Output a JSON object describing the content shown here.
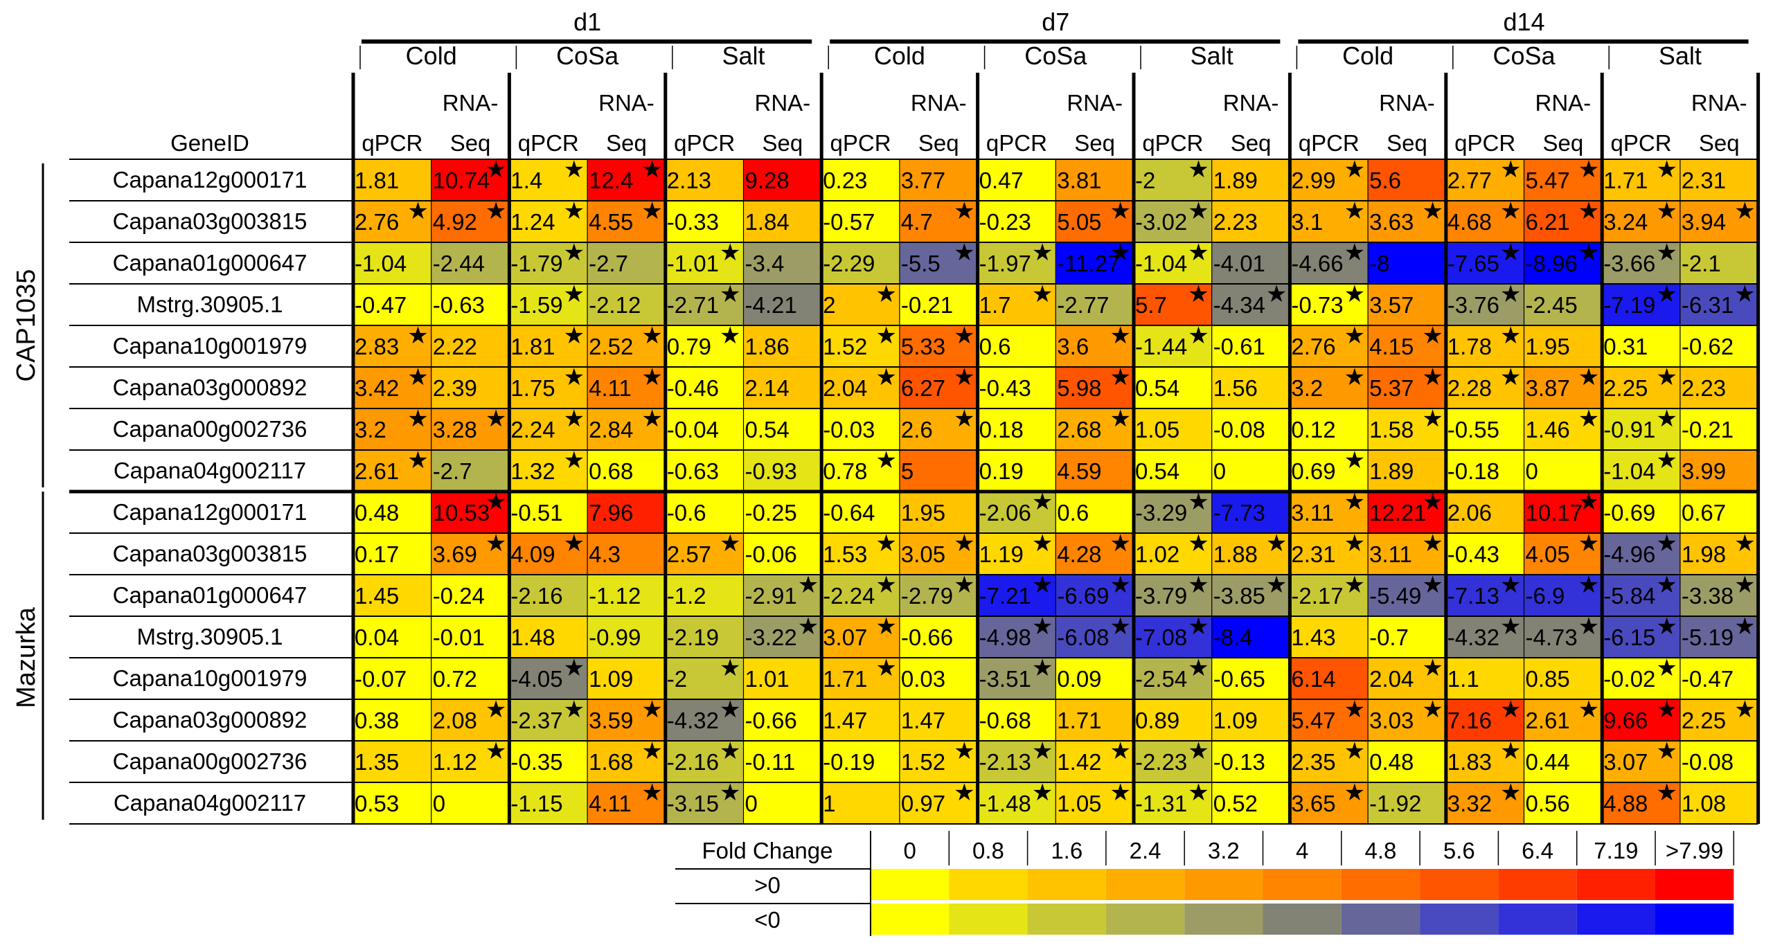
{
  "chart_data": {
    "type": "heatmap",
    "title": "",
    "gene_header": "GeneID",
    "timepoints": [
      "d1",
      "d7",
      "d14"
    ],
    "conditions": [
      "Cold",
      "CoSa",
      "Salt"
    ],
    "methods": [
      "qPCR",
      "RNA-\nSeq"
    ],
    "cultivars": [
      {
        "name": "CAP1035",
        "genes": [
          {
            "id": "Capana12g000171",
            "values": [
              "1.81",
              "10.74",
              "1.4",
              "12.4",
              "2.13",
              "9.28",
              "0.23",
              "3.77",
              "0.47",
              "3.81",
              "-2",
              "1.89",
              "2.99",
              "5.6",
              "2.77",
              "5.47",
              "1.71",
              "2.31"
            ],
            "stars": [
              0,
              1,
              1,
              1,
              0,
              0,
              0,
              0,
              0,
              0,
              1,
              0,
              1,
              0,
              1,
              1,
              1,
              0
            ]
          },
          {
            "id": "Capana03g003815",
            "values": [
              "2.76",
              "4.92",
              "1.24",
              "4.55",
              "-0.33",
              "1.84",
              "-0.57",
              "4.7",
              "-0.23",
              "5.05",
              "-3.02",
              "2.23",
              "3.1",
              "3.63",
              "4.68",
              "6.21",
              "3.24",
              "3.94"
            ],
            "stars": [
              1,
              1,
              1,
              1,
              0,
              0,
              0,
              1,
              0,
              1,
              1,
              0,
              1,
              1,
              1,
              1,
              1,
              1
            ]
          },
          {
            "id": "Capana01g000647",
            "values": [
              "-1.04",
              "-2.44",
              "-1.79",
              "-2.7",
              "-1.01",
              "-3.4",
              "-2.29",
              "-5.5",
              "-1.97",
              "-11.27",
              "-1.04",
              "-4.01",
              "-4.66",
              "-8",
              "-7.65",
              "-8.96",
              "-3.66",
              "-2.1"
            ],
            "stars": [
              0,
              0,
              1,
              0,
              1,
              0,
              0,
              1,
              1,
              1,
              1,
              0,
              1,
              0,
              1,
              1,
              1,
              0
            ]
          },
          {
            "id": "Mstrg.30905.1",
            "values": [
              "-0.47",
              "-0.63",
              "-1.59",
              "-2.12",
              "-2.71",
              "-4.21",
              "2",
              "-0.21",
              "1.7",
              "-2.77",
              "5.7",
              "-4.34",
              "-0.73",
              "3.57",
              "-3.76",
              "-2.45",
              "-7.19",
              "-6.31"
            ],
            "stars": [
              0,
              0,
              1,
              0,
              1,
              0,
              1,
              0,
              1,
              0,
              1,
              1,
              1,
              0,
              1,
              0,
              1,
              1
            ]
          },
          {
            "id": "Capana10g001979",
            "values": [
              "2.83",
              "2.22",
              "1.81",
              "2.52",
              "0.79",
              "1.86",
              "1.52",
              "5.33",
              "0.6",
              "3.6",
              "-1.44",
              "-0.61",
              "2.76",
              "4.15",
              "1.78",
              "1.95",
              "0.31",
              "-0.62"
            ],
            "stars": [
              1,
              0,
              1,
              1,
              1,
              0,
              1,
              1,
              0,
              1,
              1,
              0,
              1,
              1,
              1,
              0,
              0,
              0
            ]
          },
          {
            "id": "Capana03g000892",
            "values": [
              "3.42",
              "2.39",
              "1.75",
              "4.11",
              "-0.46",
              "2.14",
              "2.04",
              "6.27",
              "-0.43",
              "5.98",
              "0.54",
              "1.56",
              "3.2",
              "5.37",
              "2.28",
              "3.87",
              "2.25",
              "2.23"
            ],
            "stars": [
              1,
              0,
              1,
              1,
              0,
              0,
              1,
              1,
              0,
              1,
              0,
              0,
              1,
              1,
              1,
              1,
              1,
              0
            ]
          },
          {
            "id": "Capana00g002736",
            "values": [
              "3.2",
              "3.28",
              "2.24",
              "2.84",
              "-0.04",
              "0.54",
              "-0.03",
              "2.6",
              "0.18",
              "2.68",
              "1.05",
              "-0.08",
              "0.12",
              "1.58",
              "-0.55",
              "1.46",
              "-0.91",
              "-0.21"
            ],
            "stars": [
              1,
              1,
              1,
              1,
              0,
              0,
              0,
              1,
              0,
              1,
              0,
              0,
              0,
              1,
              0,
              1,
              1,
              0
            ]
          },
          {
            "id": "Capana04g002117",
            "values": [
              "2.61",
              "-2.7",
              "1.32",
              "0.68",
              "-0.63",
              "-0.93",
              "0.78",
              "5",
              "0.19",
              "4.59",
              "0.54",
              "0",
              "0.69",
              "1.89",
              "-0.18",
              "0",
              "-1.04",
              "3.99"
            ],
            "stars": [
              1,
              0,
              1,
              0,
              0,
              0,
              1,
              0,
              0,
              0,
              0,
              0,
              1,
              0,
              0,
              0,
              1,
              0
            ]
          }
        ]
      },
      {
        "name": "Mazurka",
        "genes": [
          {
            "id": "Capana12g000171",
            "values": [
              "0.48",
              "10.53",
              "-0.51",
              "7.96",
              "-0.6",
              "-0.25",
              "-0.64",
              "1.95",
              "-2.06",
              "0.6",
              "-3.29",
              "-7.73",
              "3.11",
              "12.21",
              "2.06",
              "10.17",
              "-0.69",
              "0.67"
            ],
            "stars": [
              0,
              1,
              0,
              0,
              0,
              0,
              0,
              0,
              1,
              0,
              1,
              0,
              1,
              1,
              0,
              1,
              0,
              0
            ]
          },
          {
            "id": "Capana03g003815",
            "values": [
              "0.17",
              "3.69",
              "4.09",
              "4.3",
              "2.57",
              "-0.06",
              "1.53",
              "3.05",
              "1.19",
              "4.28",
              "1.02",
              "1.88",
              "2.31",
              "3.11",
              "-0.43",
              "4.05",
              "-4.96",
              "1.98"
            ],
            "stars": [
              0,
              1,
              1,
              0,
              1,
              0,
              1,
              1,
              1,
              1,
              1,
              1,
              1,
              1,
              0,
              1,
              1,
              1
            ]
          },
          {
            "id": "Capana01g000647",
            "values": [
              "1.45",
              "-0.24",
              "-2.16",
              "-1.12",
              "-1.2",
              "-2.91",
              "-2.24",
              "-2.79",
              "-7.21",
              "-6.69",
              "-3.79",
              "-3.85",
              "-2.17",
              "-5.49",
              "-7.13",
              "-6.9",
              "-5.84",
              "-3.38"
            ],
            "stars": [
              0,
              0,
              0,
              0,
              0,
              1,
              1,
              1,
              1,
              1,
              1,
              1,
              1,
              1,
              1,
              1,
              1,
              1
            ]
          },
          {
            "id": "Mstrg.30905.1",
            "values": [
              "0.04",
              "-0.01",
              "1.48",
              "-0.99",
              "-2.19",
              "-3.22",
              "3.07",
              "-0.66",
              "-4.98",
              "-6.08",
              "-7.08",
              "-8.4",
              "1.43",
              "-0.7",
              "-4.32",
              "-4.73",
              "-6.15",
              "-5.19"
            ],
            "stars": [
              0,
              0,
              0,
              0,
              0,
              1,
              1,
              0,
              1,
              1,
              1,
              0,
              0,
              0,
              1,
              1,
              1,
              1
            ]
          },
          {
            "id": "Capana10g001979",
            "values": [
              "-0.07",
              "0.72",
              "-4.05",
              "1.09",
              "-2",
              "1.01",
              "1.71",
              "0.03",
              "-3.51",
              "0.09",
              "-2.54",
              "-0.65",
              "6.14",
              "2.04",
              "1.1",
              "0.85",
              "-0.02",
              "-0.47"
            ],
            "stars": [
              0,
              0,
              1,
              0,
              1,
              0,
              1,
              0,
              1,
              0,
              1,
              0,
              0,
              1,
              0,
              0,
              1,
              0
            ]
          },
          {
            "id": "Capana03g000892",
            "values": [
              "0.38",
              "2.08",
              "-2.37",
              "3.59",
              "-4.32",
              "-0.66",
              "1.47",
              "1.47",
              "-0.68",
              "1.71",
              "0.89",
              "1.09",
              "5.47",
              "3.03",
              "7.16",
              "2.61",
              "9.66",
              "2.25"
            ],
            "stars": [
              0,
              1,
              1,
              1,
              1,
              0,
              0,
              0,
              0,
              0,
              0,
              0,
              1,
              1,
              1,
              1,
              1,
              1
            ]
          },
          {
            "id": "Capana00g002736",
            "values": [
              "1.35",
              "1.12",
              "-0.35",
              "1.68",
              "-2.16",
              "-0.11",
              "-0.19",
              "1.52",
              "-2.13",
              "1.42",
              "-2.23",
              "-0.13",
              "2.35",
              "0.48",
              "1.83",
              "0.44",
              "3.07",
              "-0.08"
            ],
            "stars": [
              0,
              1,
              0,
              1,
              1,
              0,
              0,
              1,
              1,
              1,
              1,
              0,
              1,
              0,
              1,
              0,
              1,
              0
            ]
          },
          {
            "id": "Capana04g002117",
            "values": [
              "0.53",
              "0",
              "-1.15",
              "4.11",
              "-3.15",
              "0",
              "1",
              "0.97",
              "-1.48",
              "1.05",
              "-1.31",
              "0.52",
              "3.65",
              "-1.92",
              "3.32",
              "0.56",
              "4.88",
              "1.08"
            ],
            "stars": [
              0,
              0,
              0,
              1,
              1,
              0,
              0,
              1,
              1,
              1,
              1,
              0,
              1,
              0,
              1,
              0,
              1,
              0
            ]
          }
        ]
      }
    ],
    "legend": {
      "title": "Fold Change",
      "row_labels": [
        ">0",
        "<0"
      ],
      "thresholds": [
        "0",
        "0.8",
        "1.6",
        "2.4",
        "3.2",
        "4",
        "4.8",
        "5.6",
        "6.4",
        "7.19",
        ">7.99"
      ],
      "positive_colors": [
        "#ffff00",
        "#ffd800",
        "#ffc300",
        "#ffae00",
        "#ff9900",
        "#ff8400",
        "#ff6c00",
        "#ff5400",
        "#ff3c00",
        "#ff2000",
        "#ff0000"
      ],
      "negative_colors": [
        "#ffff00",
        "#e4e417",
        "#c8c836",
        "#b4b44f",
        "#9c9c66",
        "#828275",
        "#66669b",
        "#4a4abf",
        "#3232d8",
        "#1a1aee",
        "#0000ff"
      ]
    },
    "star_symbol": "★"
  }
}
